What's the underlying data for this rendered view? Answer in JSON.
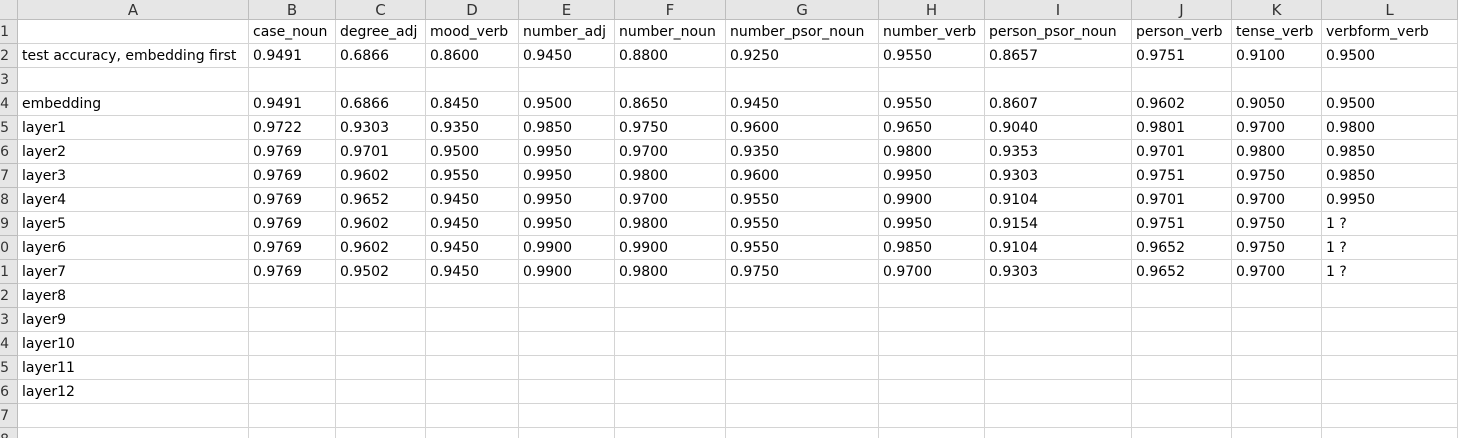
{
  "columns": [
    "A",
    "B",
    "C",
    "D",
    "E",
    "F",
    "G",
    "H",
    "I",
    "J",
    "K",
    "L"
  ],
  "row_numbers": [
    "1",
    "2",
    "3",
    "4",
    "5",
    "6",
    "7",
    "8",
    "9",
    "0",
    "1",
    "2",
    "3",
    "4",
    "5",
    "6",
    "7",
    "8"
  ],
  "rows": [
    [
      "",
      "case_noun",
      "degree_adj",
      "mood_verb",
      "number_adj",
      "number_noun",
      "number_psor_noun",
      "number_verb",
      "person_psor_noun",
      "person_verb",
      "tense_verb",
      "verbform_verb"
    ],
    [
      "test accuracy, embedding first",
      "0.9491",
      "0.6866",
      "0.8600",
      "0.9450",
      "0.8800",
      "0.9250",
      "0.9550",
      "0.8657",
      "0.9751",
      "0.9100",
      "0.9500"
    ],
    [
      "",
      "",
      "",
      "",
      "",
      "",
      "",
      "",
      "",
      "",
      "",
      ""
    ],
    [
      "embedding",
      "0.9491",
      "0.6866",
      "0.8450",
      "0.9500",
      "0.8650",
      "0.9450",
      "0.9550",
      "0.8607",
      "0.9602",
      "0.9050",
      "0.9500"
    ],
    [
      "layer1",
      "0.9722",
      "0.9303",
      "0.9350",
      "0.9850",
      "0.9750",
      "0.9600",
      "0.9650",
      "0.9040",
      "0.9801",
      "0.9700",
      "0.9800"
    ],
    [
      "layer2",
      "0.9769",
      "0.9701",
      "0.9500",
      "0.9950",
      "0.9700",
      "0.9350",
      "0.9800",
      "0.9353",
      "0.9701",
      "0.9800",
      "0.9850"
    ],
    [
      "layer3",
      "0.9769",
      "0.9602",
      "0.9550",
      "0.9950",
      "0.9800",
      "0.9600",
      "0.9950",
      "0.9303",
      "0.9751",
      "0.9750",
      "0.9850"
    ],
    [
      "layer4",
      "0.9769",
      "0.9652",
      "0.9450",
      "0.9950",
      "0.9700",
      "0.9550",
      "0.9900",
      "0.9104",
      "0.9701",
      "0.9700",
      "0.9950"
    ],
    [
      "layer5",
      "0.9769",
      "0.9602",
      "0.9450",
      "0.9950",
      "0.9800",
      "0.9550",
      "0.9950",
      "0.9154",
      "0.9751",
      "0.9750",
      "1 ?"
    ],
    [
      "layer6",
      "0.9769",
      "0.9602",
      "0.9450",
      "0.9900",
      "0.9900",
      "0.9550",
      "0.9850",
      "0.9104",
      "0.9652",
      "0.9750",
      "1 ?"
    ],
    [
      "layer7",
      "0.9769",
      "0.9502",
      "0.9450",
      "0.9900",
      "0.9800",
      "0.9750",
      "0.9700",
      "0.9303",
      "0.9652",
      "0.9700",
      "1 ?"
    ],
    [
      "layer8",
      "",
      "",
      "",
      "",
      "",
      "",
      "",
      "",
      "",
      "",
      ""
    ],
    [
      "layer9",
      "",
      "",
      "",
      "",
      "",
      "",
      "",
      "",
      "",
      "",
      ""
    ],
    [
      "layer10",
      "",
      "",
      "",
      "",
      "",
      "",
      "",
      "",
      "",
      "",
      ""
    ],
    [
      "layer11",
      "",
      "",
      "",
      "",
      "",
      "",
      "",
      "",
      "",
      "",
      ""
    ],
    [
      "layer12",
      "",
      "",
      "",
      "",
      "",
      "",
      "",
      "",
      "",
      "",
      ""
    ],
    [
      "",
      "",
      "",
      "",
      "",
      "",
      "",
      "",
      "",
      "",
      "",
      ""
    ],
    [
      "",
      "",
      "",
      "",
      "",
      "",
      "",
      "",
      "",
      "",
      "",
      ""
    ]
  ]
}
